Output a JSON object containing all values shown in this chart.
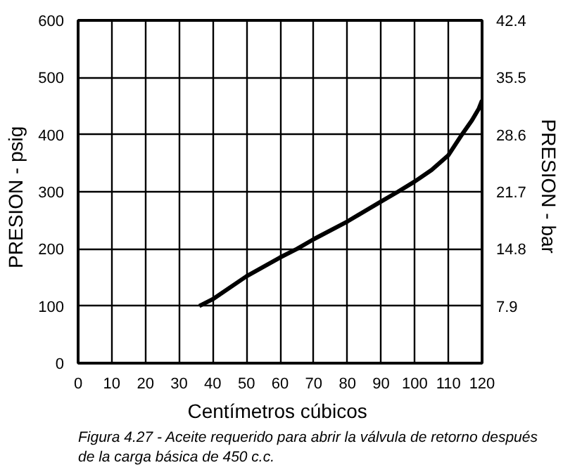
{
  "chart_data": {
    "type": "line",
    "xlabel": "Centímetros  cúbicos",
    "ylabel": "PRESION  -  psig",
    "y2label": "PRESION  -  bar",
    "x": [
      36,
      40,
      50,
      60,
      65,
      70,
      80,
      90,
      95,
      100,
      105,
      110,
      114,
      117,
      119,
      120
    ],
    "series": [
      {
        "color": "#000000",
        "values": [
          100,
          112,
          152,
          185,
          200,
          217,
          248,
          283,
          300,
          318,
          338,
          364,
          400,
          425,
          445,
          460
        ]
      }
    ],
    "xlim": [
      0,
      120
    ],
    "xticks": [
      0,
      10,
      20,
      30,
      40,
      50,
      60,
      70,
      80,
      90,
      100,
      110,
      120
    ],
    "ylim": [
      0,
      600
    ],
    "yticks": [
      0,
      100,
      200,
      300,
      400,
      500,
      600
    ],
    "y2lim": [
      1.0,
      42.4
    ],
    "y2ticks": [
      7.9,
      14.8,
      21.7,
      28.6,
      35.5,
      42.4
    ],
    "grid": true,
    "marker": "none",
    "line_style": "solid",
    "annotations": [
      "Figura 4.27 - Aceite requerido para abrir la válvula de retorno después de la carga básica de 450 c.c."
    ]
  }
}
